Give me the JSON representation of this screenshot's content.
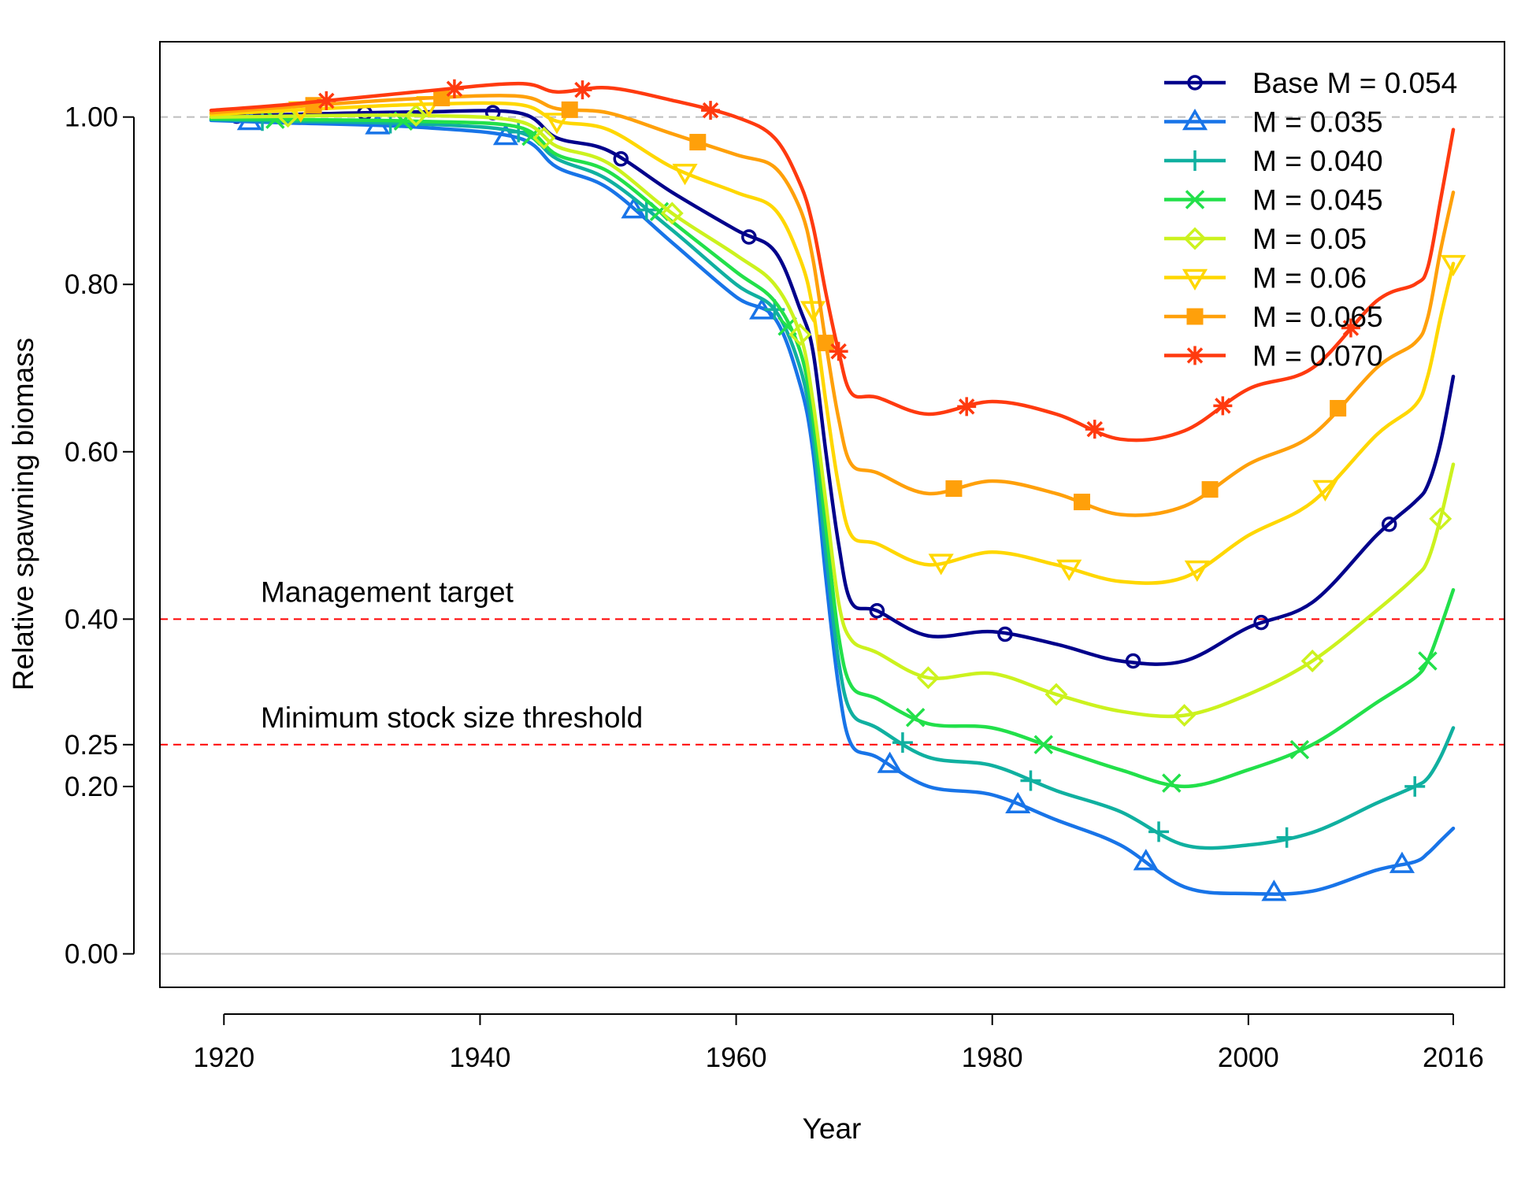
{
  "chart_data": {
    "type": "line",
    "title": "",
    "xlabel": "Year",
    "ylabel": "Relative spawning biomass",
    "xlim": [
      1915,
      2020
    ],
    "ylim": [
      -0.04,
      1.09
    ],
    "xticks": [
      1920,
      1940,
      1960,
      1980,
      2000,
      2016
    ],
    "xtick_labels": [
      "1920",
      "1940",
      "1960",
      "1980",
      "2000",
      "2016"
    ],
    "yticks": [
      0.0,
      0.2,
      0.25,
      0.4,
      0.6,
      0.8,
      1.0
    ],
    "ytick_labels": [
      "0.00",
      "0.20",
      "0.25",
      "0.40",
      "0.60",
      "0.80",
      "1.00"
    ],
    "grid": false,
    "legend_position": "top-right",
    "reference_lines": [
      {
        "y": 1.0,
        "color": "#bebebe",
        "style": "dashed",
        "label": ""
      },
      {
        "y": 0.0,
        "color": "#bebebe",
        "style": "solid",
        "label": ""
      },
      {
        "y": 0.4,
        "color": "#ff0000",
        "style": "dashed",
        "label": "Management target"
      },
      {
        "y": 0.25,
        "color": "#ff0000",
        "style": "dashed",
        "label": "Minimum stock size threshold"
      }
    ],
    "series": [
      {
        "name": "Base M = 0.054",
        "color": "#00008b",
        "marker": "circle",
        "marker_years": [
          1921,
          1931,
          1941,
          1951,
          1961,
          1971,
          1981,
          1991,
          2001,
          2011
        ],
        "x": [
          1919,
          1925,
          1935,
          1943,
          1946,
          1950,
          1955,
          1960,
          1963,
          1965,
          1966,
          1967,
          1968,
          1969,
          1971,
          1975,
          1980,
          1985,
          1990,
          1995,
          2000,
          2005,
          2010,
          2013,
          2014,
          2015,
          2016
        ],
        "y": [
          1.0,
          1.003,
          1.006,
          1.005,
          0.975,
          0.96,
          0.91,
          0.865,
          0.84,
          0.77,
          0.72,
          0.6,
          0.49,
          0.42,
          0.41,
          0.38,
          0.385,
          0.37,
          0.35,
          0.35,
          0.39,
          0.42,
          0.5,
          0.54,
          0.56,
          0.61,
          0.69
        ]
      },
      {
        "name": "M = 0.035",
        "color": "#1874e8",
        "marker": "triangle",
        "marker_years": [
          1922,
          1932,
          1942,
          1952,
          1962,
          1972,
          1982,
          1992,
          2002,
          2012
        ],
        "x": [
          1919,
          1925,
          1935,
          1943,
          1946,
          1950,
          1955,
          1960,
          1963,
          1965,
          1966,
          1967,
          1968,
          1969,
          1971,
          1975,
          1980,
          1985,
          1990,
          1995,
          2000,
          2005,
          2010,
          2013,
          2014,
          2015,
          2016
        ],
        "y": [
          0.996,
          0.993,
          0.988,
          0.975,
          0.94,
          0.915,
          0.85,
          0.785,
          0.76,
          0.68,
          0.6,
          0.45,
          0.32,
          0.25,
          0.235,
          0.2,
          0.19,
          0.16,
          0.13,
          0.08,
          0.072,
          0.075,
          0.1,
          0.11,
          0.12,
          0.135,
          0.15
        ]
      },
      {
        "name": "M = 0.040",
        "color": "#10b0a0",
        "marker": "plus",
        "marker_years": [
          1923,
          1933,
          1943,
          1953,
          1963,
          1973,
          1983,
          1993,
          2003,
          2013
        ],
        "x": [
          1919,
          1925,
          1935,
          1943,
          1946,
          1950,
          1955,
          1960,
          1963,
          1965,
          1966,
          1967,
          1968,
          1969,
          1971,
          1975,
          1980,
          1985,
          1990,
          1995,
          2000,
          2005,
          2010,
          2013,
          2014,
          2015,
          2016
        ],
        "y": [
          0.997,
          0.995,
          0.992,
          0.982,
          0.95,
          0.925,
          0.865,
          0.8,
          0.77,
          0.7,
          0.62,
          0.48,
          0.35,
          0.288,
          0.27,
          0.235,
          0.225,
          0.195,
          0.17,
          0.13,
          0.13,
          0.145,
          0.18,
          0.2,
          0.21,
          0.235,
          0.27
        ]
      },
      {
        "name": "M = 0.045",
        "color": "#22e04a",
        "marker": "x",
        "marker_years": [
          1924,
          1934,
          1944,
          1954,
          1964,
          1974,
          1984,
          1994,
          2004,
          2014
        ],
        "x": [
          1919,
          1925,
          1935,
          1943,
          1946,
          1950,
          1955,
          1960,
          1963,
          1965,
          1966,
          1967,
          1968,
          1969,
          1971,
          1975,
          1980,
          1985,
          1990,
          1995,
          2000,
          2005,
          2010,
          2013,
          2014,
          2015,
          2016
        ],
        "y": [
          0.998,
          0.997,
          0.995,
          0.988,
          0.955,
          0.935,
          0.875,
          0.815,
          0.78,
          0.72,
          0.64,
          0.51,
          0.38,
          0.32,
          0.305,
          0.275,
          0.27,
          0.245,
          0.22,
          0.2,
          0.22,
          0.25,
          0.3,
          0.33,
          0.35,
          0.39,
          0.435
        ]
      },
      {
        "name": "M = 0.05",
        "color": "#ccf21e",
        "marker": "diamond",
        "marker_years": [
          1925,
          1935,
          1945,
          1955,
          1965,
          1975,
          1985,
          1995,
          2005,
          2015
        ],
        "x": [
          1919,
          1925,
          1935,
          1943,
          1946,
          1950,
          1955,
          1960,
          1963,
          1965,
          1966,
          1967,
          1968,
          1969,
          1971,
          1975,
          1980,
          1985,
          1990,
          1995,
          2000,
          2005,
          2010,
          2013,
          2014,
          2015,
          2016
        ],
        "y": [
          1.0,
          1.001,
          1.002,
          0.995,
          0.965,
          0.945,
          0.885,
          0.835,
          0.8,
          0.74,
          0.66,
          0.54,
          0.42,
          0.375,
          0.36,
          0.33,
          0.335,
          0.31,
          0.29,
          0.285,
          0.31,
          0.35,
          0.41,
          0.45,
          0.47,
          0.52,
          0.585
        ]
      },
      {
        "name": "M = 0.06",
        "color": "#ffd700",
        "marker": "triangle-down",
        "marker_years": [
          1926,
          1936,
          1946,
          1956,
          1966,
          1976,
          1986,
          1996,
          2006,
          2016
        ],
        "x": [
          1919,
          1925,
          1935,
          1943,
          1946,
          1950,
          1955,
          1960,
          1963,
          1965,
          1966,
          1967,
          1968,
          1969,
          1971,
          1975,
          1980,
          1985,
          1990,
          1995,
          2000,
          2005,
          2010,
          2013,
          2014,
          2015,
          2016
        ],
        "y": [
          1.003,
          1.008,
          1.015,
          1.015,
          0.995,
          0.985,
          0.94,
          0.91,
          0.89,
          0.83,
          0.77,
          0.66,
          0.56,
          0.5,
          0.49,
          0.465,
          0.48,
          0.465,
          0.445,
          0.45,
          0.5,
          0.54,
          0.62,
          0.655,
          0.69,
          0.76,
          0.825
        ]
      },
      {
        "name": "M = 0.065",
        "color": "#ffa00a",
        "marker": "square",
        "marker_years": [
          1927,
          1937,
          1947,
          1957,
          1967,
          1977,
          1987,
          1997,
          2007
        ],
        "x": [
          1919,
          1925,
          1935,
          1943,
          1946,
          1950,
          1955,
          1960,
          1963,
          1965,
          1966,
          1967,
          1968,
          1969,
          1971,
          1975,
          1980,
          1985,
          1990,
          1995,
          2000,
          2005,
          2010,
          2013,
          2014,
          2015,
          2016
        ],
        "y": [
          1.005,
          1.012,
          1.022,
          1.025,
          1.01,
          1.005,
          0.98,
          0.955,
          0.94,
          0.89,
          0.83,
          0.73,
          0.64,
          0.585,
          0.575,
          0.55,
          0.565,
          0.55,
          0.525,
          0.535,
          0.585,
          0.62,
          0.7,
          0.73,
          0.76,
          0.84,
          0.91
        ]
      },
      {
        "name": "M = 0.070",
        "color": "#ff3a0f",
        "marker": "asterisk",
        "marker_years": [
          1928,
          1938,
          1948,
          1958,
          1968,
          1978,
          1988,
          1998,
          2008
        ],
        "x": [
          1919,
          1925,
          1935,
          1943,
          1946,
          1950,
          1955,
          1960,
          1963,
          1965,
          1966,
          1967,
          1968,
          1969,
          1971,
          1975,
          1980,
          1985,
          1990,
          1995,
          2000,
          2005,
          2010,
          2013,
          2014,
          2015,
          2016
        ],
        "y": [
          1.008,
          1.015,
          1.03,
          1.04,
          1.03,
          1.035,
          1.02,
          1.0,
          0.975,
          0.92,
          0.87,
          0.79,
          0.72,
          0.67,
          0.665,
          0.645,
          0.66,
          0.645,
          0.615,
          0.625,
          0.675,
          0.7,
          0.78,
          0.8,
          0.82,
          0.9,
          0.985
        ]
      }
    ]
  }
}
